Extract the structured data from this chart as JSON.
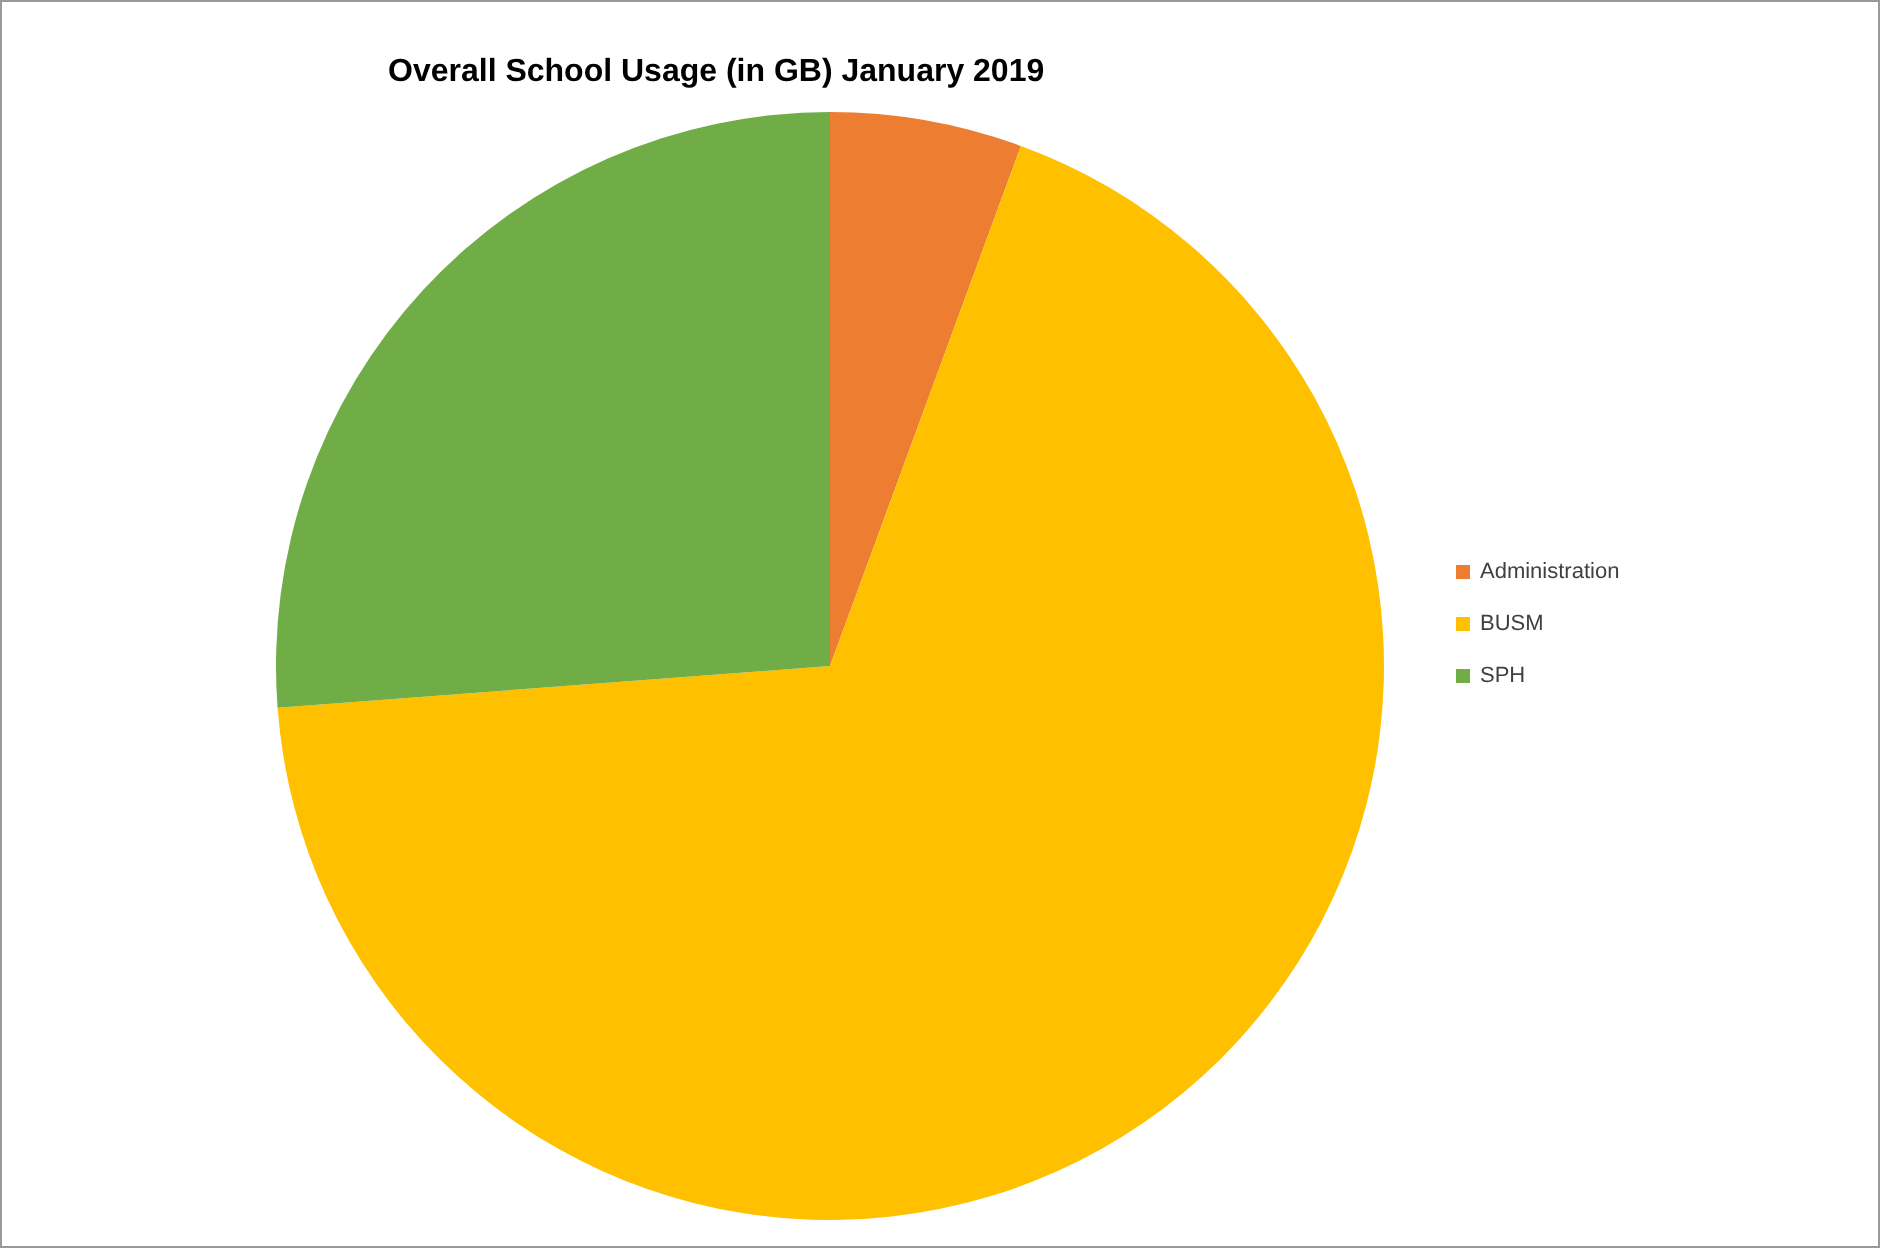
{
  "chart_data": {
    "type": "pie",
    "title": "Overall School Usage (in GB) January 2019",
    "categories": [
      "Administration",
      "BUSM",
      "SPH"
    ],
    "values": [
      5.6,
      68.2,
      26.2
    ],
    "colors": [
      "#ed7d31",
      "#ffc000",
      "#70ad47"
    ],
    "legend": "right"
  }
}
